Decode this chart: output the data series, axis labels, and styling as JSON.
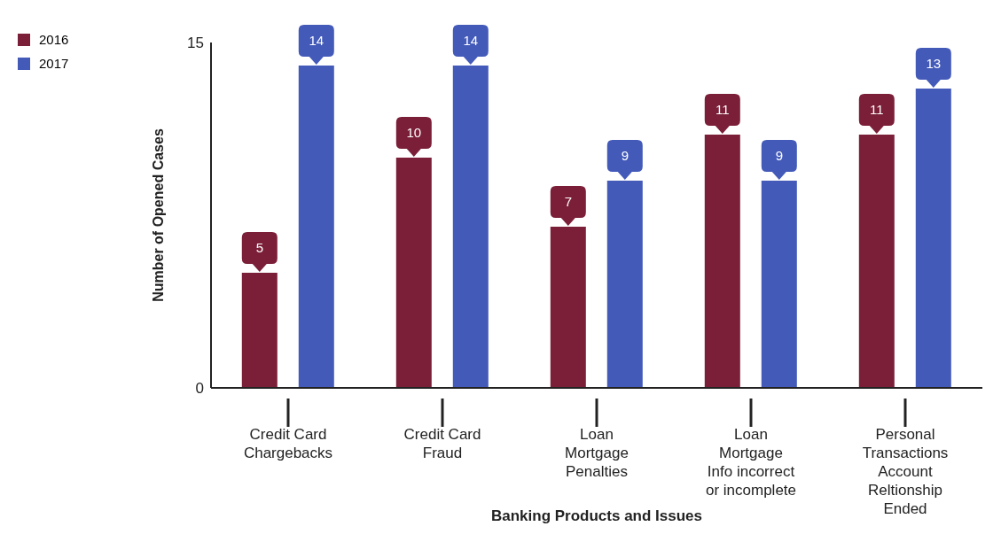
{
  "chart_data": {
    "type": "bar",
    "xlabel": "Banking Products and Issues",
    "ylabel": "Number of Opened Cases",
    "categories": [
      "Credit Card\nChargebacks",
      "Credit Card\nFraud",
      "Loan\nMortgage\nPenalties",
      "Loan\nMortgage\nInfo incorrect\nor incomplete",
      "Personal\nTransactions\nAccount\nReltionship\nEnded"
    ],
    "series": [
      {
        "name": "2016",
        "color": "#7b1f38",
        "values": [
          5,
          10,
          7,
          11,
          11
        ]
      },
      {
        "name": "2017",
        "color": "#435ab9",
        "values": [
          14,
          14,
          9,
          9,
          13
        ]
      }
    ],
    "ylim": [
      0,
      15
    ],
    "yticks": [
      0,
      15
    ],
    "legend": "top left",
    "data_labels": true
  }
}
